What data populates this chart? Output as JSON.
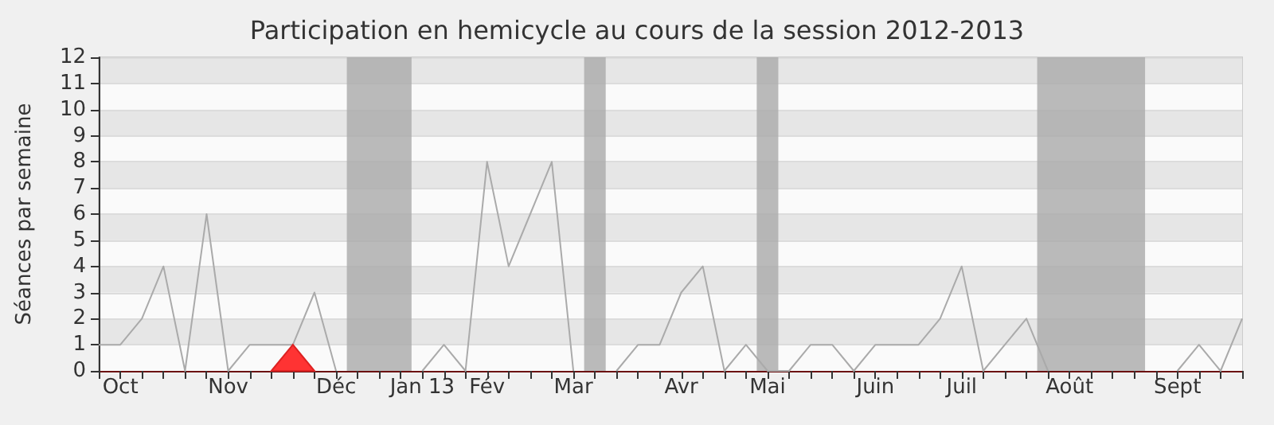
{
  "chart_data": {
    "type": "line",
    "title": "Participation en hemicycle au cours de la session 2012-2013",
    "ylabel": "Séances par semaine",
    "x": [
      "2012-10-01",
      "2012-10-08",
      "2012-10-15",
      "2012-10-22",
      "2012-10-29",
      "2012-11-05",
      "2012-11-12",
      "2012-11-19",
      "2012-11-26",
      "2012-12-03",
      "2012-12-10",
      "2012-12-17",
      "2012-12-24",
      "2012-12-31",
      "2013-01-07",
      "2013-01-14",
      "2013-01-21",
      "2013-01-28",
      "2013-02-04",
      "2013-02-11",
      "2013-02-18",
      "2013-02-25",
      "2013-03-04",
      "2013-03-11",
      "2013-03-18",
      "2013-03-25",
      "2013-04-01",
      "2013-04-08",
      "2013-04-15",
      "2013-04-22",
      "2013-04-29",
      "2013-05-06",
      "2013-05-13",
      "2013-05-20",
      "2013-05-27",
      "2013-06-03",
      "2013-06-10",
      "2013-06-17",
      "2013-06-24",
      "2013-07-01",
      "2013-07-08",
      "2013-07-15",
      "2013-07-22",
      "2013-07-29",
      "2013-08-05",
      "2013-08-12",
      "2013-08-19",
      "2013-08-26",
      "2013-09-02",
      "2013-09-09",
      "2013-09-16",
      "2013-09-23",
      "2013-09-30",
      "2013-10-07"
    ],
    "series": [
      {
        "color": "#aaaaaa",
        "values": [
          1,
          1,
          2,
          4,
          0,
          6,
          0,
          1,
          1,
          1,
          3,
          0,
          null,
          null,
          null,
          0,
          1,
          0,
          8,
          4,
          6,
          8,
          0,
          null,
          0,
          1,
          1,
          3,
          4,
          0,
          1,
          0,
          0,
          1,
          1,
          0,
          1,
          1,
          1,
          2,
          4,
          0,
          1,
          2,
          0,
          null,
          null,
          null,
          null,
          null,
          0,
          1,
          0,
          2
        ]
      }
    ],
    "xlim": [
      "2012-10-01",
      "2013-10-07"
    ],
    "xticks": [
      {
        "value": "2012-10-01",
        "label": null
      },
      {
        "value": "2012-10-08",
        "label": "Oct"
      },
      {
        "value": "2012-10-15",
        "label": null
      },
      {
        "value": "2012-10-22",
        "label": null
      },
      {
        "value": "2012-10-29",
        "label": null
      },
      {
        "value": "2012-11-05",
        "label": null
      },
      {
        "value": "2012-11-12",
        "label": "Nov"
      },
      {
        "value": "2012-11-19",
        "label": null
      },
      {
        "value": "2012-11-26",
        "label": null
      },
      {
        "value": "2012-12-03",
        "label": null
      },
      {
        "value": "2012-12-10",
        "label": null
      },
      {
        "value": "2012-12-17",
        "label": "Déc"
      },
      {
        "value": "2012-12-24",
        "label": null
      },
      {
        "value": "2012-12-31",
        "label": null
      },
      {
        "value": "2013-01-07",
        "label": null
      },
      {
        "value": "2013-01-14",
        "label": "Jan 13"
      },
      {
        "value": "2013-01-21",
        "label": null
      },
      {
        "value": "2013-01-28",
        "label": null
      },
      {
        "value": "2013-02-04",
        "label": "Fév"
      },
      {
        "value": "2013-02-11",
        "label": null
      },
      {
        "value": "2013-02-18",
        "label": null
      },
      {
        "value": "2013-02-25",
        "label": null
      },
      {
        "value": "2013-03-04",
        "label": "Mar"
      },
      {
        "value": "2013-03-11",
        "label": null
      },
      {
        "value": "2013-03-18",
        "label": null
      },
      {
        "value": "2013-03-25",
        "label": null
      },
      {
        "value": "2013-04-01",
        "label": null
      },
      {
        "value": "2013-04-08",
        "label": "Avr"
      },
      {
        "value": "2013-04-15",
        "label": null
      },
      {
        "value": "2013-04-22",
        "label": null
      },
      {
        "value": "2013-04-29",
        "label": null
      },
      {
        "value": "2013-05-06",
        "label": "Mai"
      },
      {
        "value": "2013-05-13",
        "label": null
      },
      {
        "value": "2013-05-20",
        "label": null
      },
      {
        "value": "2013-05-27",
        "label": null
      },
      {
        "value": "2013-06-03",
        "label": null
      },
      {
        "value": "2013-06-10",
        "label": "Juin"
      },
      {
        "value": "2013-06-17",
        "label": null
      },
      {
        "value": "2013-06-24",
        "label": null
      },
      {
        "value": "2013-07-01",
        "label": null
      },
      {
        "value": "2013-07-08",
        "label": "Juil"
      },
      {
        "value": "2013-07-15",
        "label": null
      },
      {
        "value": "2013-07-22",
        "label": null
      },
      {
        "value": "2013-07-29",
        "label": null
      },
      {
        "value": "2013-08-05",
        "label": null
      },
      {
        "value": "2013-08-12",
        "label": "Août"
      },
      {
        "value": "2013-08-19",
        "label": null
      },
      {
        "value": "2013-08-26",
        "label": null
      },
      {
        "value": "2013-09-02",
        "label": null
      },
      {
        "value": "2013-09-09",
        "label": null
      },
      {
        "value": "2013-09-16",
        "label": "Sept"
      },
      {
        "value": "2013-09-23",
        "label": null
      },
      {
        "value": "2013-09-30",
        "label": null
      },
      {
        "value": "2013-10-07",
        "label": null
      }
    ],
    "ylim": [
      0,
      12
    ],
    "yticks": [
      0,
      1,
      2,
      3,
      4,
      5,
      6,
      7,
      8,
      9,
      10,
      11,
      12
    ],
    "bands": [
      {
        "axis": "x",
        "from": "2012-12-20T12:00",
        "to": "2013-01-10T12:00",
        "color": "#aaaaaa"
      },
      {
        "axis": "x",
        "from": "2013-03-07T12:00",
        "to": "2013-03-14T12:00",
        "color": "#aaaaaa"
      },
      {
        "axis": "x",
        "from": "2013-05-02T12:00",
        "to": "2013-05-09T12:00",
        "color": "#aaaaaa"
      },
      {
        "axis": "x",
        "from": "2013-08-01T12:00",
        "to": "2013-09-05T12:00",
        "color": "#aaaaaa"
      }
    ],
    "grid": "y",
    "marker": "none",
    "line_style": "solid"
  }
}
